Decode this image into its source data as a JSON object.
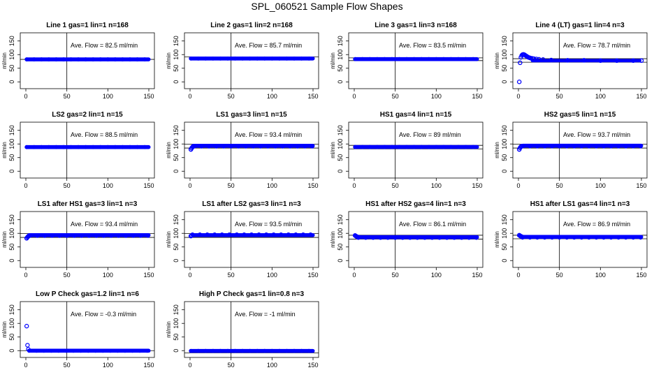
{
  "page": {
    "title": "SPL_060521  Sample Flow Shapes"
  },
  "style": {
    "point_color": "#0000ff",
    "axis_color": "#000000"
  },
  "chart_data": [
    {
      "type": "scatter",
      "title": "Line 1 gas=1 lin=1 n=168",
      "ylabel": "ml/min",
      "annotation": "Ave. Flow = 82.5 ml/min",
      "xlim": [
        0,
        150
      ],
      "ylim": [
        0,
        150
      ],
      "xticks": [
        0,
        50,
        100,
        150
      ],
      "yticks": [
        0,
        50,
        100,
        150
      ],
      "vline": 50,
      "hlines": [
        82.5
      ],
      "series": [
        {
          "x": [
            1,
            150
          ],
          "y": [
            82.5,
            82.5
          ],
          "shape": "band"
        }
      ]
    },
    {
      "type": "scatter",
      "title": "Line 2 gas=1 lin=2 n=168",
      "ylabel": "ml/min",
      "annotation": "Ave. Flow = 85.7 ml/min",
      "xlim": [
        0,
        150
      ],
      "ylim": [
        0,
        150
      ],
      "xticks": [
        0,
        50,
        100,
        150
      ],
      "yticks": [
        0,
        50,
        100,
        150
      ],
      "vline": 50,
      "hlines": [
        92
      ],
      "series": [
        {
          "x": [
            1,
            150
          ],
          "y": [
            85.7,
            85.7
          ],
          "shape": "band"
        }
      ]
    },
    {
      "type": "scatter",
      "title": "Line 3 gas=1 lin=3 n=168",
      "ylabel": "ml/min",
      "annotation": "Ave. Flow = 83.5 ml/min",
      "xlim": [
        0,
        150
      ],
      "ylim": [
        0,
        150
      ],
      "xticks": [
        0,
        50,
        100,
        150
      ],
      "yticks": [
        0,
        50,
        100,
        150
      ],
      "vline": 50,
      "hlines": [
        88,
        78
      ],
      "series": [
        {
          "x": [
            1,
            150
          ],
          "y": [
            83.5,
            83.5
          ],
          "shape": "band"
        }
      ]
    },
    {
      "type": "scatter",
      "title": "Line 4 (LT) gas=1 lin=4 n=3",
      "ylabel": "ml/min",
      "annotation": "Ave. Flow = 78.7 ml/min",
      "xlim": [
        0,
        150
      ],
      "ylim": [
        0,
        150
      ],
      "xticks": [
        0,
        50,
        100,
        150
      ],
      "yticks": [
        0,
        50,
        100,
        150
      ],
      "vline": 50,
      "hlines": [
        85,
        72
      ],
      "series": [
        {
          "x": [
            1,
            2,
            3,
            4,
            5,
            6,
            7,
            8,
            9,
            10,
            11,
            12,
            13,
            14,
            15,
            17,
            19,
            22,
            25,
            30,
            40,
            60,
            80,
            100,
            120,
            140,
            150
          ],
          "y": [
            0,
            70,
            90,
            97,
            100,
            101,
            100,
            98,
            96,
            94,
            92,
            90,
            89,
            88,
            87,
            86,
            85,
            84,
            83,
            82,
            80,
            79,
            79,
            78,
            78,
            78,
            78
          ],
          "shape": "points"
        }
      ]
    },
    {
      "type": "scatter",
      "title": "LS2 gas=2 lin=1 n=15",
      "ylabel": "ml/min",
      "annotation": "Ave. Flow = 88.5 ml/min",
      "xlim": [
        0,
        150
      ],
      "ylim": [
        0,
        150
      ],
      "xticks": [
        0,
        50,
        100,
        150
      ],
      "yticks": [
        0,
        50,
        100,
        150
      ],
      "vline": 50,
      "hlines": [],
      "series": [
        {
          "x": [
            1,
            150
          ],
          "y": [
            88.5,
            88.5
          ],
          "shape": "band"
        }
      ]
    },
    {
      "type": "scatter",
      "title": "LS1 gas=3 lin=1 n=15",
      "ylabel": "ml/min",
      "annotation": "Ave. Flow = 93.4 ml/min",
      "xlim": [
        0,
        150
      ],
      "ylim": [
        0,
        150
      ],
      "xticks": [
        0,
        50,
        100,
        150
      ],
      "yticks": [
        0,
        50,
        100,
        150
      ],
      "vline": 50,
      "hlines": [
        99,
        85
      ],
      "series": [
        {
          "x": [
            1,
            2,
            3,
            4,
            5,
            150
          ],
          "y": [
            80,
            85,
            89,
            92,
            93.4,
            93.4
          ],
          "shape": "band"
        }
      ]
    },
    {
      "type": "scatter",
      "title": "HS1 gas=4 lin=1 n=15",
      "ylabel": "ml/min",
      "annotation": "Ave. Flow = 89 ml/min",
      "xlim": [
        0,
        150
      ],
      "ylim": [
        0,
        150
      ],
      "xticks": [
        0,
        50,
        100,
        150
      ],
      "yticks": [
        0,
        50,
        100,
        150
      ],
      "vline": 50,
      "hlines": [
        95,
        82
      ],
      "series": [
        {
          "x": [
            1,
            150
          ],
          "y": [
            89,
            89
          ],
          "shape": "band"
        }
      ]
    },
    {
      "type": "scatter",
      "title": "HS2 gas=5 lin=1 n=15",
      "ylabel": "ml/min",
      "annotation": "Ave. Flow = 93.7 ml/min",
      "xlim": [
        0,
        150
      ],
      "ylim": [
        0,
        150
      ],
      "xticks": [
        0,
        50,
        100,
        150
      ],
      "yticks": [
        0,
        50,
        100,
        150
      ],
      "vline": 50,
      "hlines": [
        99,
        85
      ],
      "series": [
        {
          "x": [
            1,
            2,
            3,
            4,
            5,
            150
          ],
          "y": [
            80,
            86,
            90,
            92,
            93.7,
            93.7
          ],
          "shape": "band"
        }
      ]
    },
    {
      "type": "scatter",
      "title": "LS1 after HS1 gas=3 lin=1 n=3",
      "ylabel": "ml/min",
      "annotation": "Ave. Flow = 93.4 ml/min",
      "xlim": [
        0,
        150
      ],
      "ylim": [
        0,
        150
      ],
      "xticks": [
        0,
        50,
        100,
        150
      ],
      "yticks": [
        0,
        50,
        100,
        150
      ],
      "vline": 50,
      "hlines": [
        99,
        85
      ],
      "series": [
        {
          "x": [
            1,
            2,
            3,
            4,
            5,
            150
          ],
          "y": [
            82,
            86,
            89,
            92,
            93.4,
            93.4
          ],
          "shape": "band"
        }
      ]
    },
    {
      "type": "scatter",
      "title": "LS1 after LS2 gas=3 lin=1 n=3",
      "ylabel": "ml/min",
      "annotation": "Ave. Flow = 93.5 ml/min",
      "xlim": [
        0,
        150
      ],
      "ylim": [
        0,
        150
      ],
      "xticks": [
        0,
        50,
        100,
        150
      ],
      "yticks": [
        0,
        50,
        100,
        150
      ],
      "vline": 50,
      "hlines": [
        99,
        85
      ],
      "series": [
        {
          "x": [
            1,
            2,
            3,
            150
          ],
          "y": [
            90,
            92,
            93.5,
            93.5
          ],
          "shape": "band"
        }
      ]
    },
    {
      "type": "scatter",
      "title": "HS1 after HS2 gas=4 lin=1 n=3",
      "ylabel": "ml/min",
      "annotation": "Ave. Flow = 86.1 ml/min",
      "xlim": [
        0,
        150
      ],
      "ylim": [
        0,
        150
      ],
      "xticks": [
        0,
        50,
        100,
        150
      ],
      "yticks": [
        0,
        50,
        100,
        150
      ],
      "vline": 50,
      "hlines": [
        93,
        79
      ],
      "series": [
        {
          "x": [
            1,
            2,
            3,
            4,
            5,
            150
          ],
          "y": [
            92,
            90,
            88,
            87,
            86.1,
            86.1
          ],
          "shape": "band"
        }
      ]
    },
    {
      "type": "scatter",
      "title": "HS1 after LS1 gas=4 lin=1 n=3",
      "ylabel": "ml/min",
      "annotation": "Ave. Flow = 86.9 ml/min",
      "xlim": [
        0,
        150
      ],
      "ylim": [
        0,
        150
      ],
      "xticks": [
        0,
        50,
        100,
        150
      ],
      "yticks": [
        0,
        50,
        100,
        150
      ],
      "vline": 50,
      "hlines": [
        93,
        80
      ],
      "series": [
        {
          "x": [
            1,
            2,
            3,
            4,
            5,
            150
          ],
          "y": [
            93,
            91,
            89,
            88,
            86.9,
            86.9
          ],
          "shape": "band"
        }
      ]
    },
    {
      "type": "scatter",
      "title": "Low P Check gas=1.2 lin=1 n=6",
      "ylabel": "ml/min",
      "annotation": "Ave. Flow = -0.3 ml/min",
      "xlim": [
        0,
        150
      ],
      "ylim": [
        0,
        150
      ],
      "xticks": [
        0,
        50,
        100,
        150
      ],
      "yticks": [
        0,
        50,
        100,
        150
      ],
      "vline": 50,
      "hlines": [
        0
      ],
      "series": [
        {
          "x": [
            1,
            2,
            3,
            4,
            150
          ],
          "y": [
            90,
            20,
            5,
            1,
            -0.3
          ],
          "shape": "points-band"
        }
      ]
    },
    {
      "type": "scatter",
      "title": "High P Check gas=1 lin=0.8 n=3",
      "ylabel": "ml/min",
      "annotation": "Ave. Flow = -1 ml/min",
      "xlim": [
        0,
        150
      ],
      "ylim": [
        0,
        150
      ],
      "xticks": [
        0,
        50,
        100,
        150
      ],
      "yticks": [
        0,
        50,
        100,
        150
      ],
      "vline": 50,
      "hlines": [
        -8
      ],
      "series": [
        {
          "x": [
            1,
            150
          ],
          "y": [
            -1,
            -1
          ],
          "shape": "band"
        }
      ]
    }
  ]
}
